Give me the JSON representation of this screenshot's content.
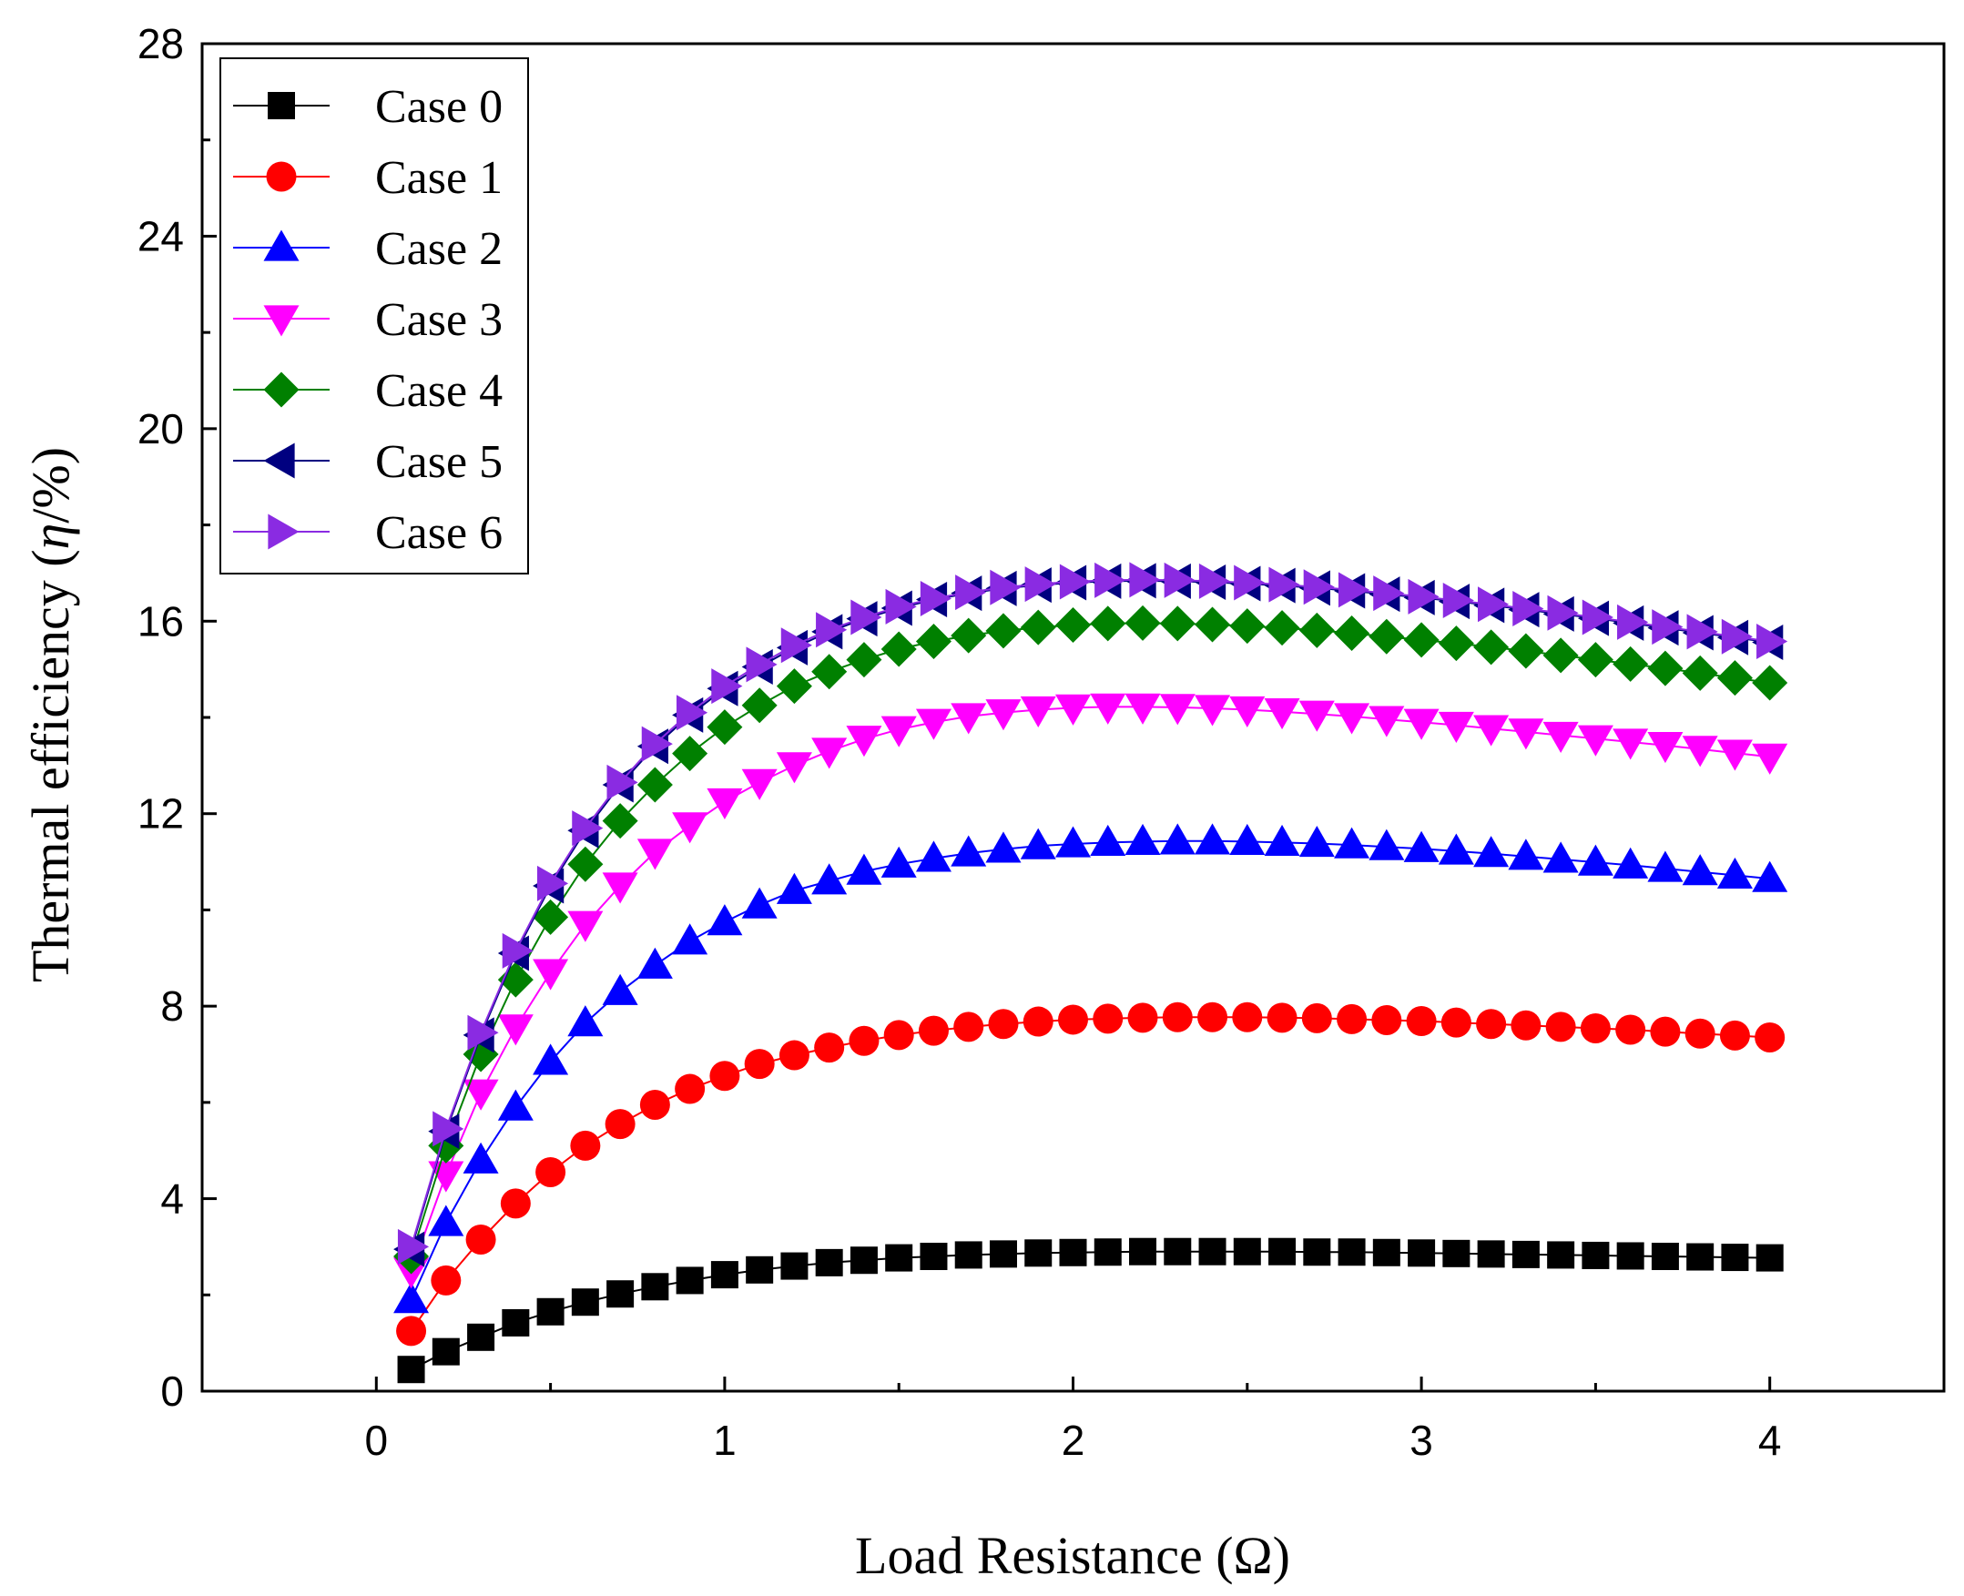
{
  "chart_data": {
    "type": "line",
    "title": "",
    "xlabel": "Load Resistance (Ω)",
    "ylabel_prefix": "Thermal efficiency (",
    "ylabel_symbol": "η",
    "ylabel_suffix": "/%)",
    "xlim": [
      -0.5,
      4.5
    ],
    "ylim": [
      0,
      28
    ],
    "xticks": [
      0,
      1,
      2,
      3,
      4
    ],
    "yticks": [
      0,
      4,
      8,
      12,
      16,
      20,
      24,
      28
    ],
    "legend_position": "top-left",
    "x": [
      0.1,
      0.2,
      0.3,
      0.4,
      0.5,
      0.6,
      0.7,
      0.8,
      0.9,
      1.0,
      1.1,
      1.2,
      1.3,
      1.4,
      1.5,
      1.6,
      1.7,
      1.8,
      1.9,
      2.0,
      2.1,
      2.2,
      2.3,
      2.4,
      2.5,
      2.6,
      2.7,
      2.8,
      2.9,
      3.0,
      3.1,
      3.2,
      3.3,
      3.4,
      3.5,
      3.6,
      3.7,
      3.8,
      3.9,
      4.0
    ],
    "series": [
      {
        "name": "Case 0",
        "color": "#000000",
        "marker": "square",
        "values": [
          0.45,
          0.82,
          1.12,
          1.42,
          1.65,
          1.85,
          2.02,
          2.17,
          2.3,
          2.42,
          2.52,
          2.6,
          2.67,
          2.72,
          2.77,
          2.8,
          2.83,
          2.85,
          2.87,
          2.88,
          2.89,
          2.9,
          2.9,
          2.9,
          2.9,
          2.9,
          2.89,
          2.89,
          2.88,
          2.87,
          2.86,
          2.85,
          2.84,
          2.83,
          2.82,
          2.81,
          2.8,
          2.79,
          2.78,
          2.77
        ]
      },
      {
        "name": "Case 1",
        "color": "#ff0000",
        "marker": "circle",
        "values": [
          1.25,
          2.3,
          3.15,
          3.9,
          4.55,
          5.1,
          5.55,
          5.95,
          6.28,
          6.55,
          6.8,
          6.98,
          7.14,
          7.28,
          7.4,
          7.49,
          7.57,
          7.63,
          7.68,
          7.72,
          7.74,
          7.76,
          7.77,
          7.77,
          7.77,
          7.76,
          7.75,
          7.73,
          7.71,
          7.69,
          7.66,
          7.63,
          7.6,
          7.57,
          7.54,
          7.51,
          7.47,
          7.43,
          7.39,
          7.35
        ]
      },
      {
        "name": "Case 2",
        "color": "#0000ff",
        "marker": "triangle-up",
        "values": [
          1.9,
          3.5,
          4.8,
          5.9,
          6.85,
          7.65,
          8.3,
          8.85,
          9.35,
          9.75,
          10.1,
          10.4,
          10.6,
          10.8,
          10.95,
          11.07,
          11.18,
          11.26,
          11.33,
          11.37,
          11.4,
          11.42,
          11.43,
          11.43,
          11.42,
          11.4,
          11.38,
          11.35,
          11.31,
          11.27,
          11.22,
          11.17,
          11.11,
          11.05,
          10.99,
          10.93,
          10.86,
          10.79,
          10.72,
          10.65
        ]
      },
      {
        "name": "Case 3",
        "color": "#ff00ff",
        "marker": "triangle-down",
        "values": [
          2.5,
          4.5,
          6.2,
          7.55,
          8.7,
          9.7,
          10.5,
          11.2,
          11.75,
          12.25,
          12.65,
          13.0,
          13.3,
          13.55,
          13.75,
          13.9,
          14.02,
          14.1,
          14.16,
          14.2,
          14.22,
          14.22,
          14.21,
          14.19,
          14.16,
          14.12,
          14.07,
          14.02,
          13.96,
          13.9,
          13.84,
          13.77,
          13.7,
          13.63,
          13.56,
          13.49,
          13.42,
          13.34,
          13.26,
          13.18
        ]
      },
      {
        "name": "Case 4",
        "color": "#008000",
        "marker": "diamond",
        "values": [
          2.8,
          5.1,
          7.0,
          8.55,
          9.85,
          10.95,
          11.85,
          12.6,
          13.25,
          13.8,
          14.25,
          14.65,
          14.95,
          15.2,
          15.42,
          15.58,
          15.7,
          15.8,
          15.87,
          15.92,
          15.95,
          15.96,
          15.95,
          15.93,
          15.9,
          15.86,
          15.81,
          15.75,
          15.68,
          15.61,
          15.54,
          15.46,
          15.38,
          15.29,
          15.2,
          15.11,
          15.02,
          14.92,
          14.82,
          14.72
        ]
      },
      {
        "name": "Case 5",
        "color": "#000080",
        "marker": "triangle-left",
        "values": [
          2.95,
          5.4,
          7.4,
          9.1,
          10.5,
          11.65,
          12.6,
          13.4,
          14.05,
          14.6,
          15.05,
          15.45,
          15.78,
          16.05,
          16.27,
          16.45,
          16.58,
          16.68,
          16.75,
          16.8,
          16.83,
          16.84,
          16.83,
          16.81,
          16.78,
          16.74,
          16.69,
          16.63,
          16.56,
          16.49,
          16.41,
          16.33,
          16.24,
          16.15,
          16.06,
          15.96,
          15.86,
          15.76,
          15.66,
          15.56
        ]
      },
      {
        "name": "Case 6",
        "color": "#8a2be2",
        "marker": "triangle-right",
        "values": [
          3.0,
          5.45,
          7.45,
          9.15,
          10.55,
          11.7,
          12.65,
          13.45,
          14.1,
          14.65,
          15.1,
          15.5,
          15.82,
          16.08,
          16.3,
          16.47,
          16.6,
          16.7,
          16.77,
          16.82,
          16.85,
          16.86,
          16.85,
          16.83,
          16.8,
          16.76,
          16.71,
          16.65,
          16.58,
          16.51,
          16.43,
          16.35,
          16.26,
          16.17,
          16.08,
          15.98,
          15.88,
          15.78,
          15.68,
          15.58
        ]
      }
    ]
  }
}
